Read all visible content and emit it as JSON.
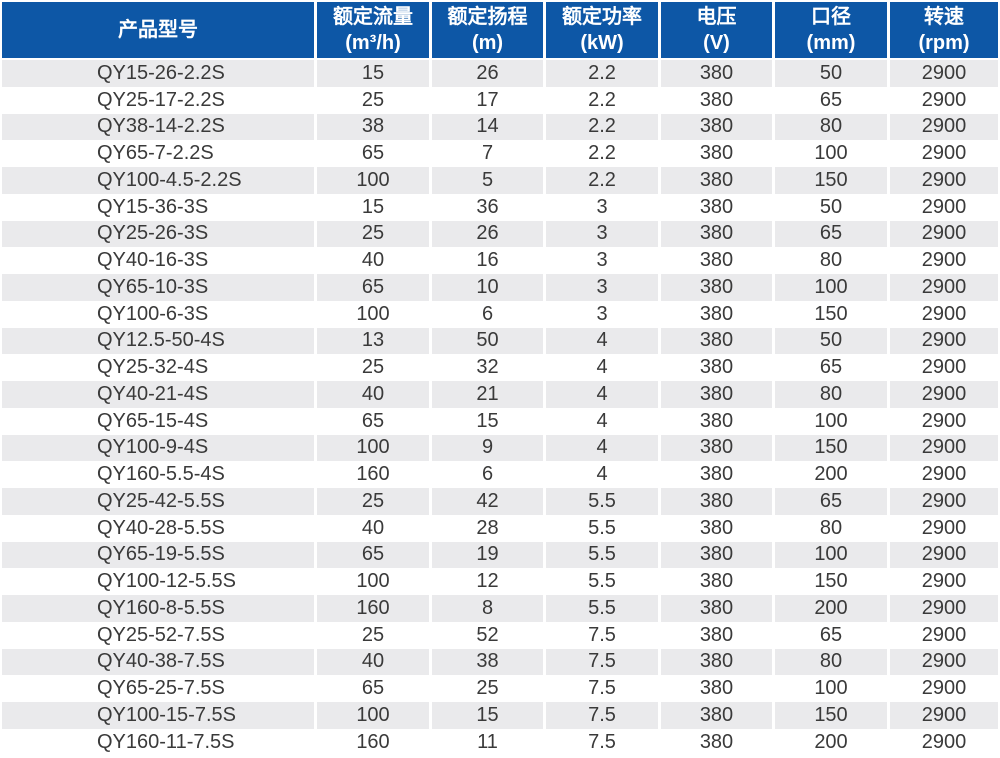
{
  "table": {
    "columns": [
      {
        "line1": "产品型号",
        "line2": ""
      },
      {
        "line1": "额定流量",
        "line2": "(m³/h)"
      },
      {
        "line1": "额定扬程",
        "line2": "(m)"
      },
      {
        "line1": "额定功率",
        "line2": "(kW)"
      },
      {
        "line1": "电压",
        "line2": "(V)"
      },
      {
        "line1": "口径",
        "line2": "(mm)"
      },
      {
        "line1": "转速",
        "line2": "(rpm)"
      }
    ],
    "rows": [
      [
        "QY15-26-2.2S",
        "15",
        "26",
        "2.2",
        "380",
        "50",
        "2900"
      ],
      [
        "QY25-17-2.2S",
        "25",
        "17",
        "2.2",
        "380",
        "65",
        "2900"
      ],
      [
        "QY38-14-2.2S",
        "38",
        "14",
        "2.2",
        "380",
        "80",
        "2900"
      ],
      [
        "QY65-7-2.2S",
        "65",
        "7",
        "2.2",
        "380",
        "100",
        "2900"
      ],
      [
        "QY100-4.5-2.2S",
        "100",
        "5",
        "2.2",
        "380",
        "150",
        "2900"
      ],
      [
        "QY15-36-3S",
        "15",
        "36",
        "3",
        "380",
        "50",
        "2900"
      ],
      [
        "QY25-26-3S",
        "25",
        "26",
        "3",
        "380",
        "65",
        "2900"
      ],
      [
        "QY40-16-3S",
        "40",
        "16",
        "3",
        "380",
        "80",
        "2900"
      ],
      [
        "QY65-10-3S",
        "65",
        "10",
        "3",
        "380",
        "100",
        "2900"
      ],
      [
        "QY100-6-3S",
        "100",
        "6",
        "3",
        "380",
        "150",
        "2900"
      ],
      [
        "QY12.5-50-4S",
        "13",
        "50",
        "4",
        "380",
        "50",
        "2900"
      ],
      [
        "QY25-32-4S",
        "25",
        "32",
        "4",
        "380",
        "65",
        "2900"
      ],
      [
        "QY40-21-4S",
        "40",
        "21",
        "4",
        "380",
        "80",
        "2900"
      ],
      [
        "QY65-15-4S",
        "65",
        "15",
        "4",
        "380",
        "100",
        "2900"
      ],
      [
        "QY100-9-4S",
        "100",
        "9",
        "4",
        "380",
        "150",
        "2900"
      ],
      [
        "QY160-5.5-4S",
        "160",
        "6",
        "4",
        "380",
        "200",
        "2900"
      ],
      [
        "QY25-42-5.5S",
        "25",
        "42",
        "5.5",
        "380",
        "65",
        "2900"
      ],
      [
        "QY40-28-5.5S",
        "40",
        "28",
        "5.5",
        "380",
        "80",
        "2900"
      ],
      [
        "QY65-19-5.5S",
        "65",
        "19",
        "5.5",
        "380",
        "100",
        "2900"
      ],
      [
        "QY100-12-5.5S",
        "100",
        "12",
        "5.5",
        "380",
        "150",
        "2900"
      ],
      [
        "QY160-8-5.5S",
        "160",
        "8",
        "5.5",
        "380",
        "200",
        "2900"
      ],
      [
        "QY25-52-7.5S",
        "25",
        "52",
        "7.5",
        "380",
        "65",
        "2900"
      ],
      [
        "QY40-38-7.5S",
        "40",
        "38",
        "7.5",
        "380",
        "80",
        "2900"
      ],
      [
        "QY65-25-7.5S",
        "65",
        "25",
        "7.5",
        "380",
        "100",
        "2900"
      ],
      [
        "QY100-15-7.5S",
        "100",
        "15",
        "7.5",
        "380",
        "150",
        "2900"
      ],
      [
        "QY160-11-7.5S",
        "160",
        "11",
        "7.5",
        "380",
        "200",
        "2900"
      ]
    ]
  },
  "colors": {
    "header_bg": "#0d57a6",
    "header_text": "#ffffff",
    "stripe_bg": "#eaeaec",
    "row_bg": "#ffffff",
    "body_text": "#3a3a3a",
    "divider": "#ffffff"
  }
}
